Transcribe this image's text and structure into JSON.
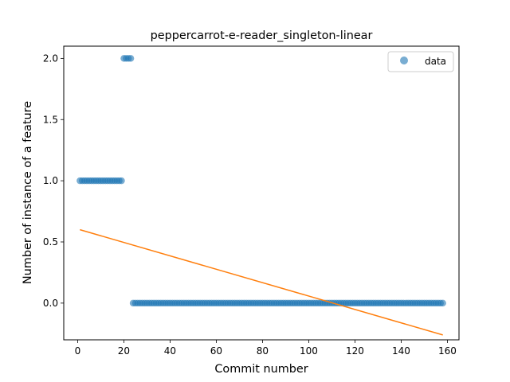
{
  "chart_data": {
    "type": "scatter",
    "title": "peppercarrot-e-reader_singleton-linear",
    "xlabel": "Commit number",
    "ylabel": "Number of instance of a feature",
    "xlim": [
      -6,
      165
    ],
    "ylim": [
      -0.3,
      2.1
    ],
    "xticks": [
      0,
      20,
      40,
      60,
      80,
      100,
      120,
      140,
      160
    ],
    "yticks": [
      0.0,
      0.5,
      1.0,
      1.5,
      2.0
    ],
    "xtick_labels": [
      "0",
      "20",
      "40",
      "60",
      "80",
      "100",
      "120",
      "140",
      "160"
    ],
    "ytick_labels": [
      "0.0",
      "0.5",
      "1.0",
      "1.5",
      "2.0"
    ],
    "grid": false,
    "legend_position": "top-right",
    "series": [
      {
        "name": "data",
        "kind": "scatter",
        "color": "#1f77b4",
        "segments": [
          {
            "x_from": 1,
            "x_to": 19,
            "y": 1
          },
          {
            "x_from": 20,
            "x_to": 23,
            "y": 2
          },
          {
            "x_from": 24,
            "x_to": 158,
            "y": 0
          }
        ]
      },
      {
        "kind": "line",
        "color": "#ff7f0e",
        "points": [
          [
            1,
            0.6
          ],
          [
            158,
            -0.26
          ]
        ]
      }
    ]
  }
}
